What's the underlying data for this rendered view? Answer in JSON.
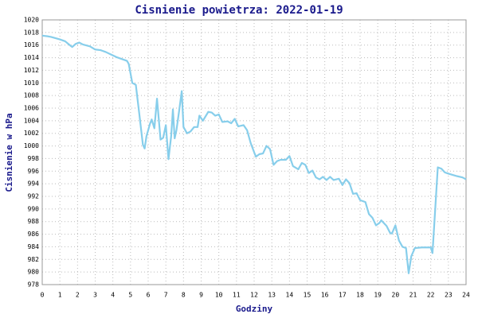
{
  "chart_data": {
    "type": "line",
    "title": "Cisnienie powietrza: 2022-01-19",
    "xlabel": "Godziny",
    "ylabel": "Cisnienie w hPa",
    "xlim": [
      0,
      24
    ],
    "xticks": [
      0,
      1,
      2,
      3,
      4,
      5,
      6,
      7,
      8,
      9,
      10,
      11,
      12,
      13,
      14,
      15,
      16,
      17,
      18,
      19,
      20,
      21,
      22,
      23,
      24
    ],
    "ylim": [
      978,
      1020
    ],
    "yticks": [
      978,
      980,
      982,
      984,
      986,
      988,
      990,
      992,
      994,
      996,
      998,
      1000,
      1002,
      1004,
      1006,
      1008,
      1010,
      1012,
      1014,
      1016,
      1018,
      1020
    ],
    "grid": true,
    "series": [
      {
        "color": "#87ceeb",
        "x": [
          0,
          0.3,
          0.5,
          1,
          1.3,
          1.6,
          1.7,
          1.9,
          2.1,
          2.3,
          2.7,
          3,
          3.3,
          3.6,
          3.9,
          4.2,
          4.5,
          4.8,
          4.9,
          5.1,
          5.3,
          5.5,
          5.7,
          5.8,
          5.9,
          6.1,
          6.2,
          6.35,
          6.5,
          6.7,
          6.85,
          7.0,
          7.15,
          7.3,
          7.4,
          7.5,
          7.6,
          7.75,
          7.9,
          8.0,
          8.2,
          8.4,
          8.6,
          8.8,
          8.9,
          9.1,
          9.4,
          9.6,
          9.8,
          10.0,
          10.2,
          10.5,
          10.7,
          10.9,
          11.1,
          11.4,
          11.6,
          11.8,
          12.0,
          12.1,
          12.3,
          12.5,
          12.7,
          12.9,
          13.1,
          13.3,
          13.5,
          13.8,
          14.0,
          14.2,
          14.5,
          14.7,
          14.9,
          15.1,
          15.3,
          15.5,
          15.7,
          15.9,
          16.1,
          16.3,
          16.5,
          16.8,
          17.0,
          17.2,
          17.4,
          17.6,
          17.8,
          18.0,
          18.3,
          18.5,
          18.7,
          18.9,
          19.1,
          19.2,
          19.5,
          19.7,
          19.8,
          20.0,
          20.2,
          20.4,
          20.6,
          20.75,
          20.9,
          21.1,
          21.5,
          21.8,
          22.0,
          22.1,
          22.4,
          22.6,
          22.8,
          23.0,
          23.5,
          23.8,
          24
        ],
        "values": [
          1017.5,
          1017.4,
          1017.3,
          1016.9,
          1016.6,
          1015.9,
          1015.7,
          1016.2,
          1016.4,
          1016.1,
          1015.8,
          1015.3,
          1015.2,
          1014.9,
          1014.5,
          1014.1,
          1013.8,
          1013.5,
          1013.0,
          1010.0,
          1009.7,
          1005,
          1000.2,
          999.6,
          1001.5,
          1003.5,
          1004.2,
          1002.8,
          1007.5,
          1001,
          1001.3,
          1003.3,
          997.9,
          1001.5,
          1005.8,
          1001.2,
          1002.5,
          1005.5,
          1008.7,
          1003,
          1002,
          1002.3,
          1003,
          1003,
          1004.8,
          1004,
          1005.4,
          1005.3,
          1004.8,
          1005,
          1003.8,
          1003.9,
          1003.6,
          1004.3,
          1003.1,
          1003.3,
          1002.5,
          1000.5,
          999,
          998.3,
          998.7,
          998.8,
          1000,
          999.5,
          997,
          997.6,
          997.8,
          997.8,
          998.4,
          996.8,
          996.3,
          997.3,
          997,
          995.7,
          996.1,
          995,
          994.7,
          995.1,
          994.6,
          995.1,
          994.6,
          994.8,
          993.8,
          994.7,
          994.1,
          992.4,
          992.5,
          991.4,
          991.1,
          989.2,
          988.6,
          987.4,
          987.8,
          988.2,
          987.3,
          986.2,
          986.1,
          987.4,
          985,
          984,
          983.8,
          979.8,
          982.5,
          983.8,
          983.9,
          983.9,
          983.9,
          983,
          996.6,
          996.4,
          995.8,
          995.6,
          995.2,
          995,
          994.7
        ]
      }
    ]
  }
}
